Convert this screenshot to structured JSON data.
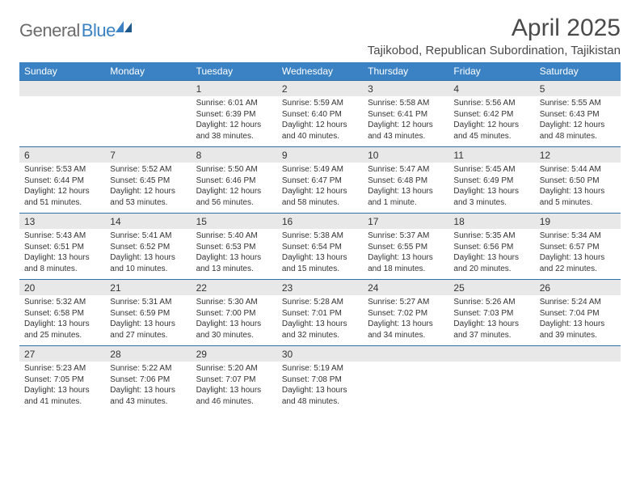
{
  "logo": {
    "part1": "General",
    "part2": "Blue"
  },
  "title": "April 2025",
  "location": "Tajikobod, Republican Subordination, Tajikistan",
  "colors": {
    "header_bg": "#3b82c4",
    "header_text": "#ffffff",
    "daynum_bg": "#e8e8e8",
    "border": "#2f6fa8",
    "text": "#333333",
    "logo_gray": "#6b6b6b",
    "logo_blue": "#3b82c4",
    "page_bg": "#ffffff"
  },
  "typography": {
    "title_fontsize": 30,
    "location_fontsize": 15,
    "dow_fontsize": 12,
    "daynum_fontsize": 12,
    "detail_fontsize": 10
  },
  "days_of_week": [
    "Sunday",
    "Monday",
    "Tuesday",
    "Wednesday",
    "Thursday",
    "Friday",
    "Saturday"
  ],
  "weeks": [
    [
      null,
      null,
      {
        "n": "1",
        "sr": "6:01 AM",
        "ss": "6:39 PM",
        "dl": "12 hours and 38 minutes."
      },
      {
        "n": "2",
        "sr": "5:59 AM",
        "ss": "6:40 PM",
        "dl": "12 hours and 40 minutes."
      },
      {
        "n": "3",
        "sr": "5:58 AM",
        "ss": "6:41 PM",
        "dl": "12 hours and 43 minutes."
      },
      {
        "n": "4",
        "sr": "5:56 AM",
        "ss": "6:42 PM",
        "dl": "12 hours and 45 minutes."
      },
      {
        "n": "5",
        "sr": "5:55 AM",
        "ss": "6:43 PM",
        "dl": "12 hours and 48 minutes."
      }
    ],
    [
      {
        "n": "6",
        "sr": "5:53 AM",
        "ss": "6:44 PM",
        "dl": "12 hours and 51 minutes."
      },
      {
        "n": "7",
        "sr": "5:52 AM",
        "ss": "6:45 PM",
        "dl": "12 hours and 53 minutes."
      },
      {
        "n": "8",
        "sr": "5:50 AM",
        "ss": "6:46 PM",
        "dl": "12 hours and 56 minutes."
      },
      {
        "n": "9",
        "sr": "5:49 AM",
        "ss": "6:47 PM",
        "dl": "12 hours and 58 minutes."
      },
      {
        "n": "10",
        "sr": "5:47 AM",
        "ss": "6:48 PM",
        "dl": "13 hours and 1 minute."
      },
      {
        "n": "11",
        "sr": "5:45 AM",
        "ss": "6:49 PM",
        "dl": "13 hours and 3 minutes."
      },
      {
        "n": "12",
        "sr": "5:44 AM",
        "ss": "6:50 PM",
        "dl": "13 hours and 5 minutes."
      }
    ],
    [
      {
        "n": "13",
        "sr": "5:43 AM",
        "ss": "6:51 PM",
        "dl": "13 hours and 8 minutes."
      },
      {
        "n": "14",
        "sr": "5:41 AM",
        "ss": "6:52 PM",
        "dl": "13 hours and 10 minutes."
      },
      {
        "n": "15",
        "sr": "5:40 AM",
        "ss": "6:53 PM",
        "dl": "13 hours and 13 minutes."
      },
      {
        "n": "16",
        "sr": "5:38 AM",
        "ss": "6:54 PM",
        "dl": "13 hours and 15 minutes."
      },
      {
        "n": "17",
        "sr": "5:37 AM",
        "ss": "6:55 PM",
        "dl": "13 hours and 18 minutes."
      },
      {
        "n": "18",
        "sr": "5:35 AM",
        "ss": "6:56 PM",
        "dl": "13 hours and 20 minutes."
      },
      {
        "n": "19",
        "sr": "5:34 AM",
        "ss": "6:57 PM",
        "dl": "13 hours and 22 minutes."
      }
    ],
    [
      {
        "n": "20",
        "sr": "5:32 AM",
        "ss": "6:58 PM",
        "dl": "13 hours and 25 minutes."
      },
      {
        "n": "21",
        "sr": "5:31 AM",
        "ss": "6:59 PM",
        "dl": "13 hours and 27 minutes."
      },
      {
        "n": "22",
        "sr": "5:30 AM",
        "ss": "7:00 PM",
        "dl": "13 hours and 30 minutes."
      },
      {
        "n": "23",
        "sr": "5:28 AM",
        "ss": "7:01 PM",
        "dl": "13 hours and 32 minutes."
      },
      {
        "n": "24",
        "sr": "5:27 AM",
        "ss": "7:02 PM",
        "dl": "13 hours and 34 minutes."
      },
      {
        "n": "25",
        "sr": "5:26 AM",
        "ss": "7:03 PM",
        "dl": "13 hours and 37 minutes."
      },
      {
        "n": "26",
        "sr": "5:24 AM",
        "ss": "7:04 PM",
        "dl": "13 hours and 39 minutes."
      }
    ],
    [
      {
        "n": "27",
        "sr": "5:23 AM",
        "ss": "7:05 PM",
        "dl": "13 hours and 41 minutes."
      },
      {
        "n": "28",
        "sr": "5:22 AM",
        "ss": "7:06 PM",
        "dl": "13 hours and 43 minutes."
      },
      {
        "n": "29",
        "sr": "5:20 AM",
        "ss": "7:07 PM",
        "dl": "13 hours and 46 minutes."
      },
      {
        "n": "30",
        "sr": "5:19 AM",
        "ss": "7:08 PM",
        "dl": "13 hours and 48 minutes."
      },
      null,
      null,
      null
    ]
  ],
  "labels": {
    "sunrise": "Sunrise: ",
    "sunset": "Sunset: ",
    "daylight": "Daylight: "
  }
}
